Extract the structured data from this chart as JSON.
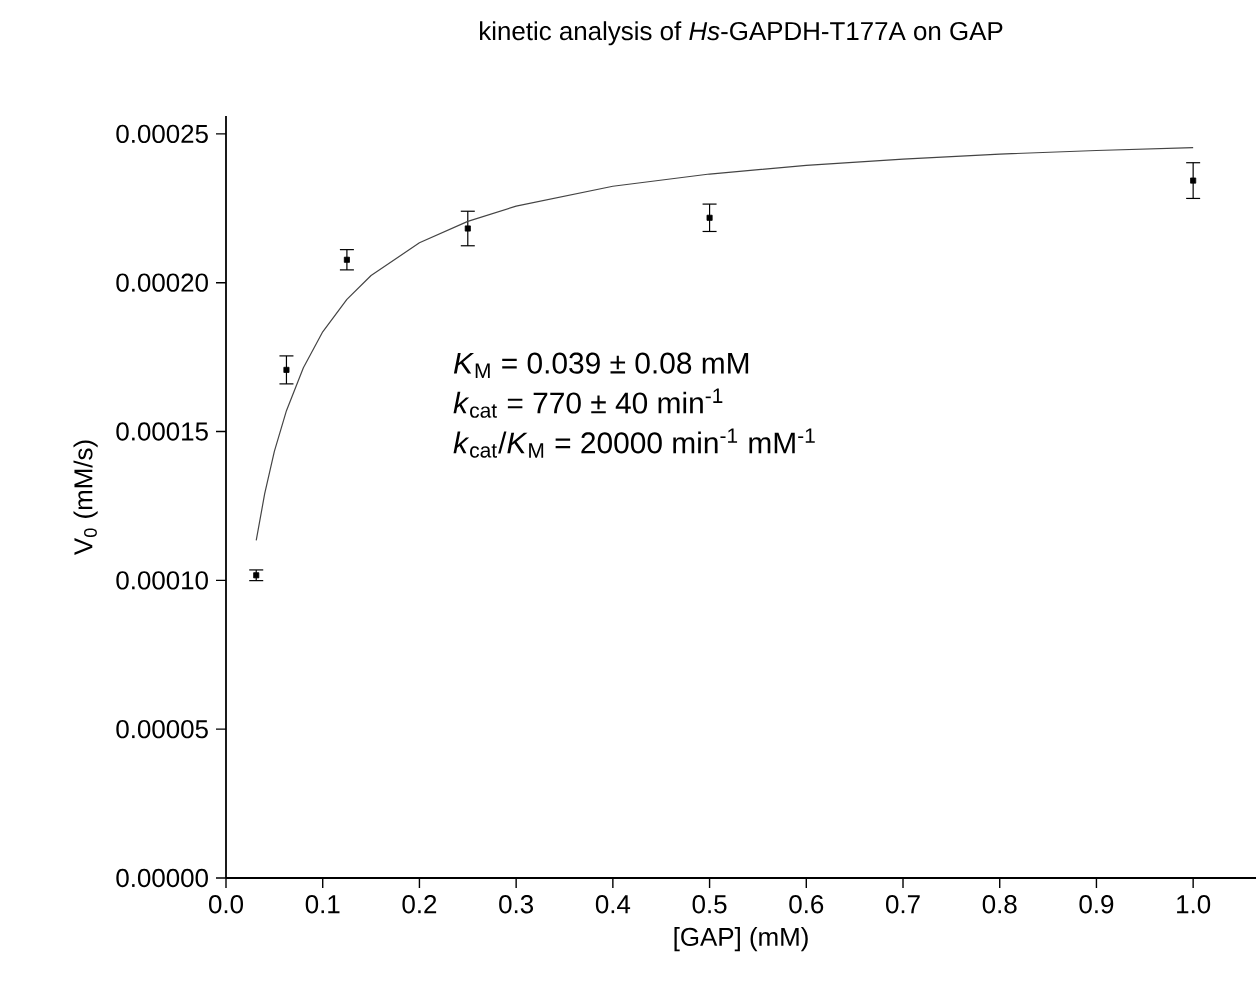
{
  "chart_data": {
    "type": "scatter",
    "title": "kinetic analysis of *Hs*-GAPDH-T177A on GAP",
    "xlabel": "[GAP] (mM)",
    "ylabel": "V$_{0}$ (mM/s)",
    "annotations": [
      "*K*$_{M}$ = 0.039 ± 0.08 mM",
      "*k*$_{cat}$ = 770 ± 40 min$^{-1}$",
      "*k*$_{cat}$/*K*$_{M}$ = 20000 min$^{-1}$ mM$^{-1}$"
    ],
    "x": [
      0.03125,
      0.0625,
      0.125,
      0.25,
      0.5,
      1.0
    ],
    "series": [
      {
        "color": "#000000",
        "marker": "square",
        "values": [
          0.0001017,
          0.0001707,
          0.0002077,
          0.0002182,
          0.0002218,
          0.0002343
        ],
        "errors": [
          1.8e-06,
          4.7e-06,
          3.4e-06,
          5.8e-06,
          4.6e-06,
          6e-06
        ]
      },
      {
        "type": "line",
        "color": "#444444",
        "marker": "none",
        "line_style": "solid",
        "x": [
          0.03125,
          0.04,
          0.05,
          0.0625,
          0.08,
          0.1,
          0.125,
          0.15,
          0.2,
          0.25,
          0.3,
          0.4,
          0.5,
          0.6,
          0.7,
          0.8,
          0.9,
          1.0
        ],
        "values": [
          0.0001134,
          0.0001291,
          0.0001433,
          0.000157,
          0.0001714,
          0.0001835,
          0.0001944,
          0.0002024,
          0.0002134,
          0.0002206,
          0.0002257,
          0.0002324,
          0.0002365,
          0.0002394,
          0.0002415,
          0.0002432,
          0.0002444,
          0.0002454
        ]
      }
    ],
    "xlim": [
      0,
      1.065
    ],
    "ylim": [
      0,
      0.000256
    ],
    "xticks": [
      {
        "value": 0,
        "label": "0.0"
      },
      {
        "value": 0.1,
        "label": "0.1"
      },
      {
        "value": 0.2,
        "label": "0.2"
      },
      {
        "value": 0.3,
        "label": "0.3"
      },
      {
        "value": 0.4,
        "label": "0.4"
      },
      {
        "value": 0.5,
        "label": "0.5"
      },
      {
        "value": 0.6,
        "label": "0.6"
      },
      {
        "value": 0.7,
        "label": "0.7"
      },
      {
        "value": 0.8,
        "label": "0.8"
      },
      {
        "value": 0.9,
        "label": "0.9"
      },
      {
        "value": 1.0,
        "label": "1.0"
      }
    ],
    "yticks": [
      {
        "value": 0,
        "label": "0.00000"
      },
      {
        "value": 5e-05,
        "label": "0.00005"
      },
      {
        "value": 0.0001,
        "label": "0.00010"
      },
      {
        "value": 0.00015,
        "label": "0.00015"
      },
      {
        "value": 0.0002,
        "label": "0.00020"
      },
      {
        "value": 0.00025,
        "label": "0.00025"
      }
    ],
    "grid": false
  }
}
